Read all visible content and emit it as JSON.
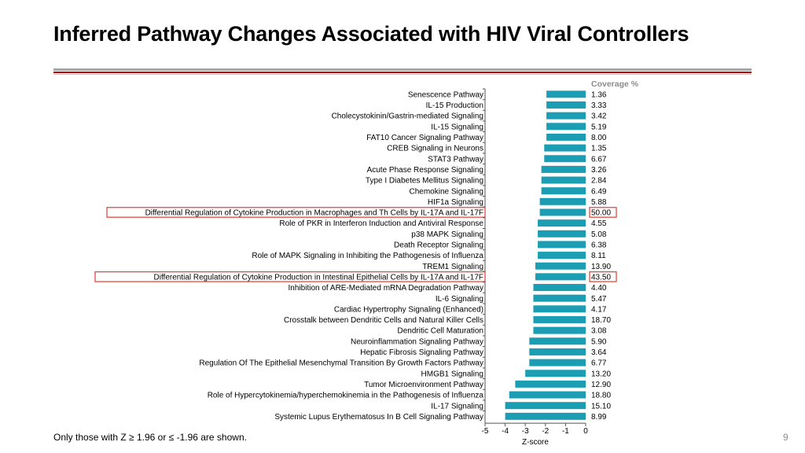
{
  "slide": {
    "title": "Inferred Pathway Changes Associated with HIV Viral Controllers",
    "footnote": "Only those with Z ≥ 1.96 or ≤ -1.96 are shown.",
    "page_number": "9"
  },
  "colors": {
    "bar": "#1b9db3",
    "highlight": "#e03c31",
    "title_rule_red": "#c00000",
    "title_rule_gray": "#a6a6a6",
    "coverage_header": "#8c8c8c"
  },
  "chart_data": {
    "type": "bar",
    "orientation": "horizontal",
    "xlabel": "Z-score",
    "xlim": [
      -5,
      0
    ],
    "xticks": [
      -5,
      -4,
      -3,
      -2,
      -1,
      0
    ],
    "coverage_header": "Coverage %",
    "categories": [
      "Senescence Pathway",
      "IL-15 Production",
      "Cholecystokinin/Gastrin-mediated Signaling",
      "IL-15 Signaling",
      "FAT10 Cancer Signaling Pathway",
      "CREB Signaling in Neurons",
      "STAT3 Pathway",
      "Acute Phase Response Signaling",
      "Type I Diabetes Mellitus Signaling",
      "Chemokine Signaling",
      "HIF1a Signaling",
      "Differential Regulation of Cytokine Production in Macrophages and Th Cells by IL-17A and IL-17F",
      "Role of PKR in Interferon Induction and Antiviral Response",
      "p38 MAPK Signaling",
      "Death Receptor Signaling",
      "Role of MAPK Signaling in Inhibiting the Pathogenesis of Influenza",
      "TREM1 Signaling",
      "Differential Regulation of Cytokine Production in Intestinal Epithelial Cells by IL-17A and IL-17F",
      "Inhibition of ARE-Mediated mRNA Degradation Pathway",
      "IL-6 Signaling",
      "Cardiac Hypertrophy Signaling (Enhanced)",
      "Crosstalk between Dendritic Cells and Natural Killer Cells",
      "Dendritic Cell Maturation",
      "Neuroinflammation Signaling Pathway",
      "Hepatic Fibrosis Signaling Pathway",
      "Regulation Of The Epithelial Mesenchymal Transition By Growth Factors Pathway",
      "HMGB1 Signaling",
      "Tumor Microenvironment Pathway",
      "Role of Hypercytokinemia/hyperchemokinemia in the Pathogenesis of Influenza",
      "IL-17 Signaling",
      "Systemic Lupus Erythematosus In B Cell Signaling Pathway"
    ],
    "values": [
      -1.95,
      -1.95,
      -1.95,
      -1.95,
      -1.95,
      -2.06,
      -2.06,
      -2.2,
      -2.2,
      -2.2,
      -2.28,
      -2.28,
      -2.38,
      -2.38,
      -2.38,
      -2.38,
      -2.5,
      -2.5,
      -2.6,
      -2.6,
      -2.6,
      -2.6,
      -2.6,
      -2.8,
      -2.8,
      -2.8,
      -3.0,
      -3.5,
      -3.8,
      -4.0,
      -4.0
    ],
    "coverage": [
      "1.36",
      "3.33",
      "3.42",
      "5.19",
      "8.00",
      "1.35",
      "6.67",
      "3.26",
      "2.84",
      "6.49",
      "5.88",
      "50.00",
      "4.55",
      "5.08",
      "6.38",
      "8.11",
      "13.90",
      "43.50",
      "4.40",
      "5.47",
      "4.17",
      "18.70",
      "3.08",
      "5.90",
      "3.64",
      "6.77",
      "13.20",
      "12.90",
      "18.80",
      "15.10",
      "8.99"
    ],
    "highlighted": [
      "Differential Regulation of Cytokine Production in Macrophages and Th Cells by IL-17A and IL-17F",
      "Differential Regulation of Cytokine Production in Intestinal Epithelial Cells by IL-17A and IL-17F"
    ]
  }
}
